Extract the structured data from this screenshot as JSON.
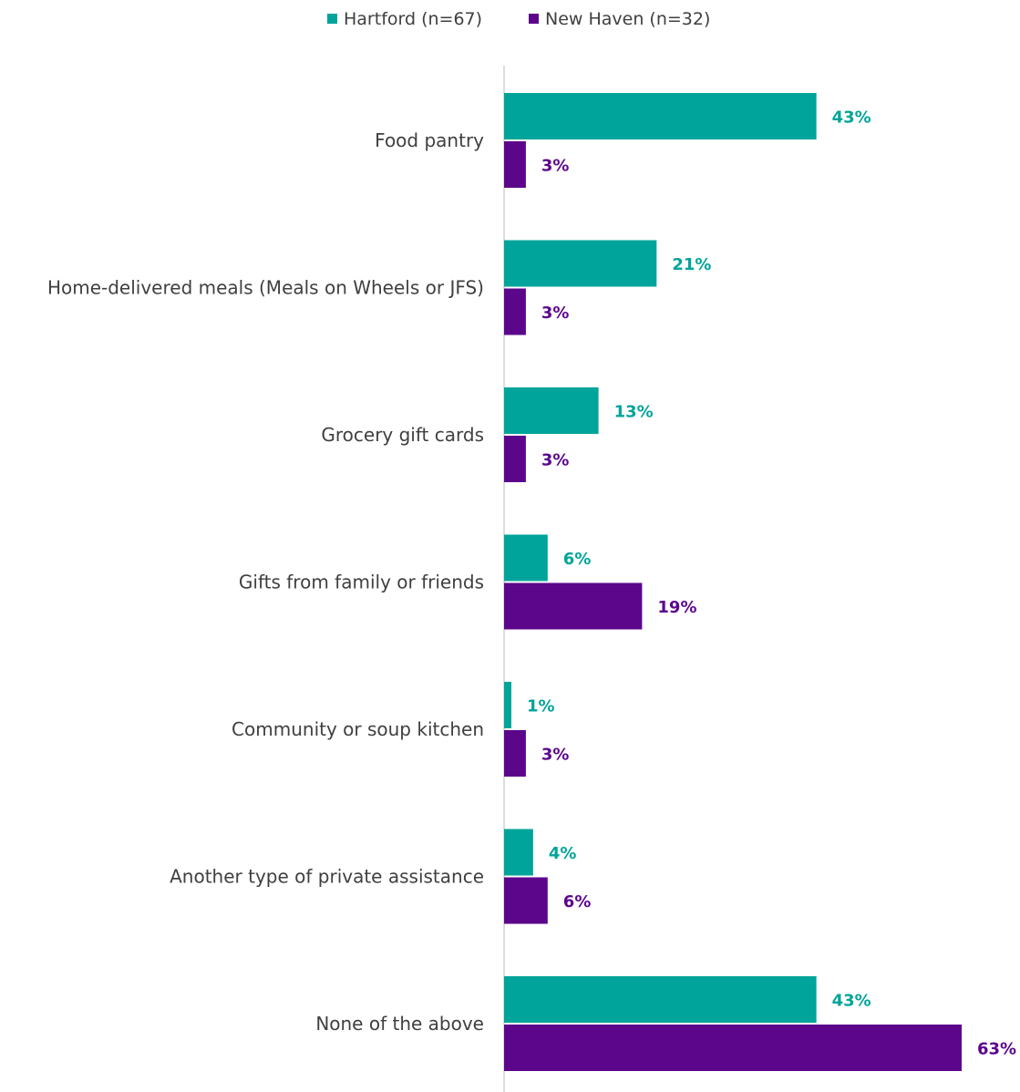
{
  "chart_data": {
    "type": "bar",
    "orientation": "horizontal",
    "categories": [
      "Food pantry",
      "Home-delivered meals (Meals on Wheels or JFS)",
      "Grocery gift cards",
      "Gifts from family or friends",
      "Community or soup kitchen",
      "Another type of private assistance",
      "None of the above"
    ],
    "series": [
      {
        "name": "Hartford (n=67)",
        "color": "#00a49a",
        "values": [
          43,
          21,
          13,
          6,
          1,
          4,
          43
        ],
        "labels": [
          "43%",
          "21%",
          "13%",
          "6%",
          "1%",
          "4%",
          "43%"
        ]
      },
      {
        "name": "New Haven (n=32)",
        "color": "#5c068c",
        "values": [
          3,
          3,
          3,
          19,
          3,
          6,
          63
        ],
        "labels": [
          "3%",
          "3%",
          "3%",
          "19%",
          "3%",
          "6%",
          "63%"
        ]
      }
    ],
    "xlim": [
      0,
      63
    ],
    "unit": "%",
    "grid": false,
    "legend_position": "top-center"
  }
}
